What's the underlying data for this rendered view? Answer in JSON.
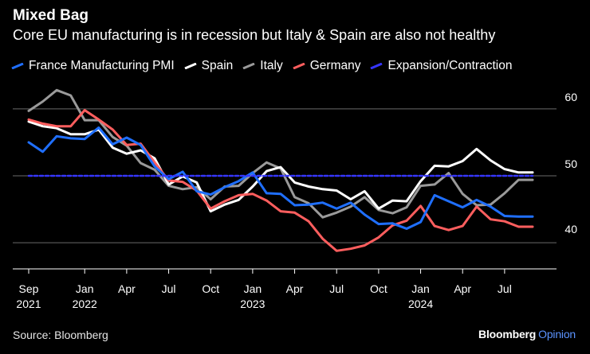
{
  "header": {
    "title": "Mixed Bag",
    "subtitle": "Core EU manufacturing is in recession but Italy & Spain are also not healthy"
  },
  "footer": {
    "source": "Source: Bloomberg",
    "brand_main": "Bloomberg",
    "brand_sub": "Opinion",
    "brand_sub_color": "#5b93ff"
  },
  "chart_data": {
    "type": "line",
    "title": "Mixed Bag",
    "subtitle": "Core EU manufacturing is in recession but Italy & Spain are also not healthy",
    "xlabel": "",
    "ylabel": "",
    "ylim": [
      38,
      62
    ],
    "y_ticks": [
      40,
      50,
      60
    ],
    "x_ticks": [
      {
        "index": 0,
        "label": "Sep",
        "year": "2021"
      },
      {
        "index": 4,
        "label": "Jan",
        "year": "2022"
      },
      {
        "index": 7,
        "label": "Apr",
        "year": ""
      },
      {
        "index": 10,
        "label": "Jul",
        "year": ""
      },
      {
        "index": 13,
        "label": "Oct",
        "year": ""
      },
      {
        "index": 16,
        "label": "Jan",
        "year": "2023"
      },
      {
        "index": 19,
        "label": "Apr",
        "year": ""
      },
      {
        "index": 22,
        "label": "Jul",
        "year": ""
      },
      {
        "index": 25,
        "label": "Oct",
        "year": ""
      },
      {
        "index": 28,
        "label": "Jan",
        "year": "2024"
      },
      {
        "index": 31,
        "label": "Apr",
        "year": ""
      },
      {
        "index": 34,
        "label": "Jul",
        "year": ""
      }
    ],
    "categories": [
      "Sep 2021",
      "Oct 2021",
      "Nov 2021",
      "Dec 2021",
      "Jan 2022",
      "Feb 2022",
      "Mar 2022",
      "Apr 2022",
      "May 2022",
      "Jun 2022",
      "Jul 2022",
      "Aug 2022",
      "Sep 2022",
      "Oct 2022",
      "Nov 2022",
      "Dec 2022",
      "Jan 2023",
      "Feb 2023",
      "Mar 2023",
      "Apr 2023",
      "May 2023",
      "Jun 2023",
      "Jul 2023",
      "Aug 2023",
      "Sep 2023",
      "Oct 2023",
      "Nov 2023",
      "Dec 2023",
      "Jan 2024",
      "Feb 2024",
      "Mar 2024",
      "Apr 2024",
      "May 2024",
      "Jun 2024",
      "Jul 2024",
      "Aug 2024",
      "Sep 2024"
    ],
    "series": [
      {
        "name": "France Manufacturing PMI",
        "color": "#1f6fff",
        "values": [
          55.0,
          53.6,
          55.9,
          55.6,
          55.5,
          57.2,
          54.7,
          55.7,
          54.6,
          51.4,
          49.5,
          50.6,
          47.7,
          47.2,
          48.3,
          49.2,
          50.5,
          47.4,
          47.3,
          45.6,
          45.7,
          46.0,
          45.1,
          46.0,
          44.2,
          42.8,
          42.9,
          42.1,
          43.1,
          47.1,
          46.2,
          45.3,
          46.4,
          45.4,
          44.0,
          43.9,
          43.9
        ]
      },
      {
        "name": "Spain",
        "color": "#ffffff",
        "values": [
          58.1,
          57.4,
          57.1,
          56.2,
          56.2,
          56.9,
          54.2,
          53.3,
          53.8,
          52.6,
          48.7,
          49.9,
          49.0,
          44.7,
          45.7,
          46.4,
          48.4,
          50.7,
          51.3,
          49.0,
          48.4,
          48.0,
          47.8,
          46.5,
          47.7,
          45.1,
          46.3,
          46.2,
          49.2,
          51.5,
          51.4,
          52.2,
          54.0,
          52.3,
          51.0,
          50.5,
          50.5
        ]
      },
      {
        "name": "Italy",
        "color": "#9a9a9a",
        "values": [
          59.7,
          61.1,
          62.8,
          62.0,
          58.3,
          58.3,
          55.8,
          54.5,
          51.9,
          50.9,
          48.5,
          48.0,
          48.3,
          46.5,
          48.4,
          48.5,
          50.4,
          52.0,
          51.1,
          46.8,
          45.9,
          43.8,
          44.5,
          45.4,
          46.8,
          44.9,
          44.4,
          45.3,
          48.5,
          48.7,
          50.4,
          47.3,
          45.6,
          45.7,
          47.4,
          49.4,
          49.4
        ]
      },
      {
        "name": "Germany",
        "color": "#ff5e5e",
        "values": [
          58.4,
          57.8,
          57.4,
          57.4,
          59.8,
          58.4,
          56.9,
          54.6,
          54.8,
          52.0,
          49.3,
          49.1,
          47.8,
          45.1,
          46.2,
          47.1,
          47.3,
          46.3,
          44.7,
          44.5,
          43.2,
          40.6,
          38.8,
          39.1,
          39.6,
          40.8,
          42.6,
          43.3,
          45.5,
          42.5,
          41.9,
          42.5,
          45.4,
          43.5,
          43.2,
          42.4,
          42.4
        ]
      },
      {
        "name": "Expansion/Contraction",
        "color": "#3535ff",
        "style": "dashed",
        "values": [
          50,
          50,
          50,
          50,
          50,
          50,
          50,
          50,
          50,
          50,
          50,
          50,
          50,
          50,
          50,
          50,
          50,
          50,
          50,
          50,
          50,
          50,
          50,
          50,
          50,
          50,
          50,
          50,
          50,
          50,
          50,
          50,
          50,
          50,
          50,
          50,
          50
        ]
      }
    ],
    "grid": true,
    "legend_position": "top"
  }
}
